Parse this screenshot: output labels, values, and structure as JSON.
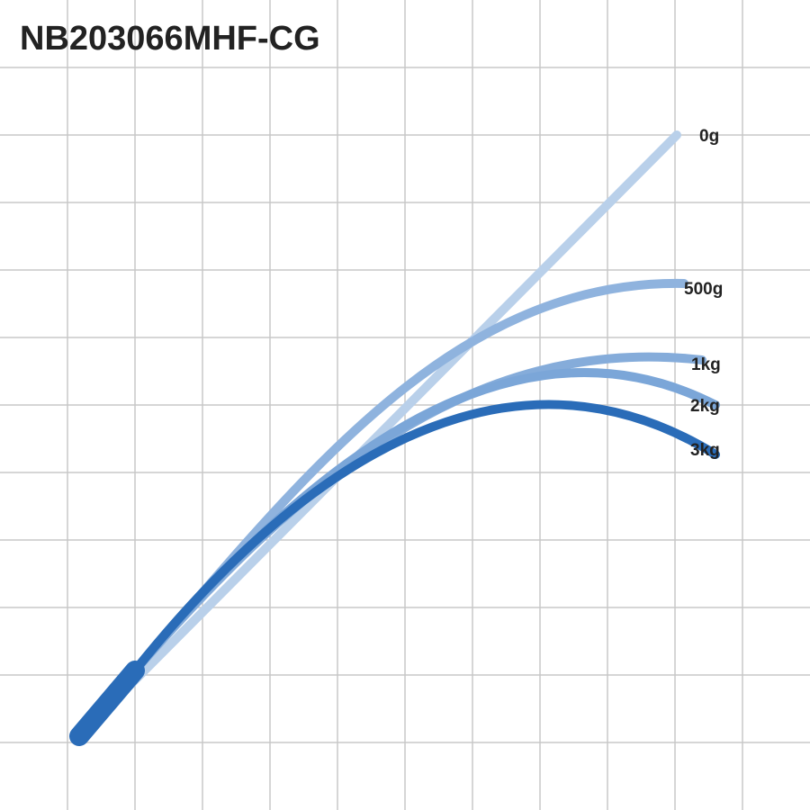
{
  "title": "NB203066MHF-CG",
  "curves": [
    {
      "label": "0g"
    },
    {
      "label": "500g"
    },
    {
      "label": "1kg"
    },
    {
      "label": "2kg"
    },
    {
      "label": "3kg"
    }
  ]
}
